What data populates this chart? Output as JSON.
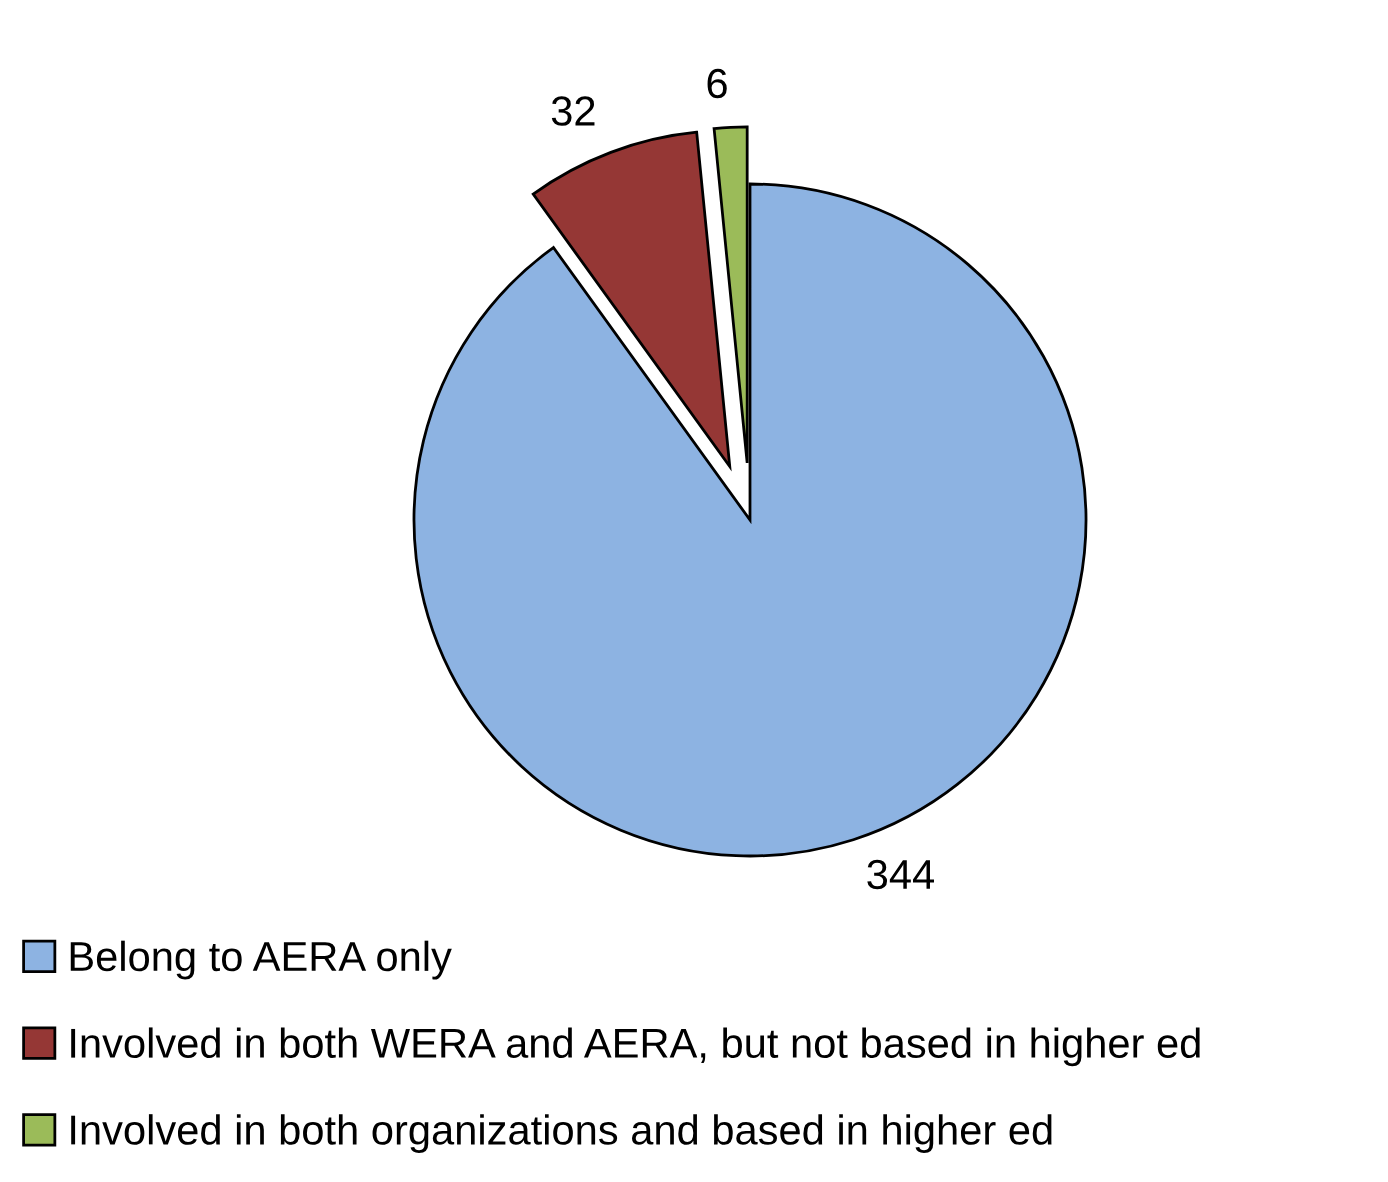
{
  "chart_data": {
    "type": "pie",
    "categories": [
      "Belong to AERA only",
      "Involved in both WERA and AERA, but not based in higher ed",
      "Involved in both organizations and based in higher ed"
    ],
    "values": [
      344,
      32,
      6
    ],
    "colors": [
      "#8db3e2",
      "#953735",
      "#9bbb59"
    ],
    "data_labels": true,
    "legend": "bottom"
  }
}
